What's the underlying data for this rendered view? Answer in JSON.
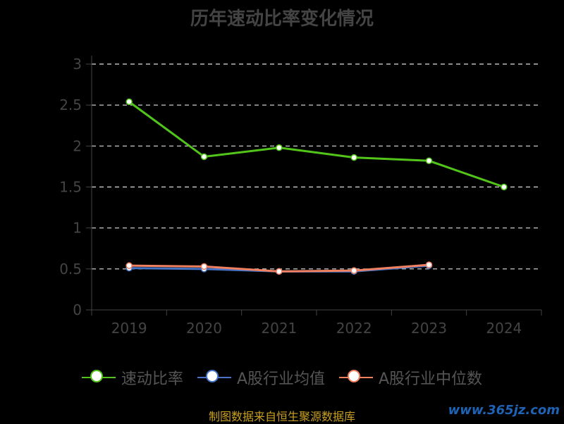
{
  "chart_data": {
    "type": "line",
    "title": "历年速动比率变化情况",
    "categories": [
      "2019",
      "2020",
      "2021",
      "2022",
      "2023",
      "2024"
    ],
    "ylim": [
      0,
      3
    ],
    "yticks": [
      "0",
      "0.5",
      "1",
      "1.5",
      "2",
      "2.5",
      "3"
    ],
    "grid": true,
    "legend_position": "bottom",
    "series": [
      {
        "name": "速动比率",
        "color": "#52c41a",
        "values": [
          2.54,
          1.87,
          1.98,
          1.86,
          1.82,
          1.5
        ]
      },
      {
        "name": "A股行业均值",
        "color": "#4472c4",
        "values": [
          0.51,
          0.5,
          0.47,
          0.47,
          0.54,
          null
        ]
      },
      {
        "name": "A股行业中位数",
        "color": "#f08060",
        "values": [
          0.54,
          0.53,
          0.47,
          0.48,
          0.55,
          null
        ]
      }
    ]
  },
  "footer": "制图数据来自恒生聚源数据库",
  "watermark": "www.365jz.com"
}
